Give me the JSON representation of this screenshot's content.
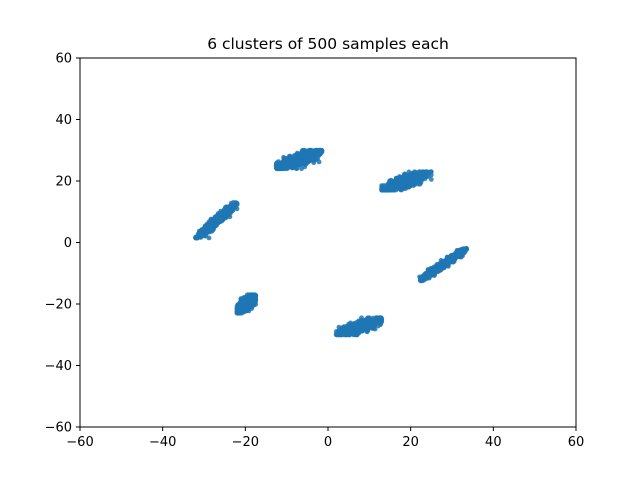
{
  "chart_data": {
    "type": "scatter",
    "title": "6 clusters of 500 samples each",
    "xlabel": "",
    "ylabel": "",
    "xlim": [
      -60,
      60
    ],
    "ylim": [
      -60,
      60
    ],
    "xticks": [
      -60,
      -40,
      -20,
      0,
      20,
      40,
      60
    ],
    "yticks": [
      -60,
      -40,
      -20,
      0,
      20,
      40,
      60
    ],
    "xtick_labels": [
      "−60",
      "−40",
      "−20",
      "0",
      "20",
      "40",
      "60"
    ],
    "ytick_labels": [
      "−60",
      "−40",
      "−20",
      "0",
      "20",
      "40",
      "60"
    ],
    "grid": false,
    "legend": "none",
    "marker_color": "#1f77b4",
    "samples_per_cluster": 500,
    "clusters": [
      {
        "x_range": [
          -32,
          -22
        ],
        "y_range": [
          1.5,
          13
        ],
        "center": [
          -27,
          7
        ]
      },
      {
        "x_range": [
          -12.5,
          -1.5
        ],
        "y_range": [
          24,
          30
        ],
        "center": [
          -7,
          27
        ]
      },
      {
        "x_range": [
          13,
          25
        ],
        "y_range": [
          17,
          23
        ],
        "center": [
          19,
          20
        ]
      },
      {
        "x_range": [
          22,
          33.5
        ],
        "y_range": [
          -12.5,
          -2
        ],
        "center": [
          28,
          -7
        ]
      },
      {
        "x_range": [
          2,
          13
        ],
        "y_range": [
          -30,
          -24.5
        ],
        "center": [
          7.5,
          -27.5
        ]
      },
      {
        "x_range": [
          -22,
          -17.5
        ],
        "y_range": [
          -23,
          -17
        ],
        "center": [
          -19.8,
          -20
        ]
      }
    ]
  }
}
